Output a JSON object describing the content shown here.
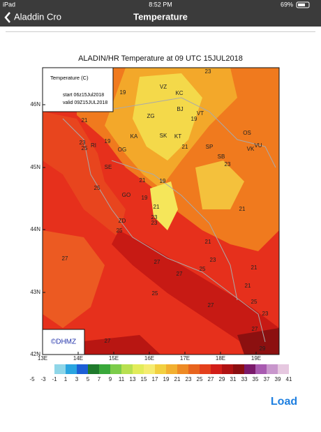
{
  "status_bar": {
    "device": "iPad",
    "time": "8:52 PM",
    "battery": "69%"
  },
  "nav_bar": {
    "back": "Aladdin Cro",
    "title": "Temperature"
  },
  "map": {
    "title": "ALADIN/HR Temperature at 09 UTC 15JUL2018",
    "legend": {
      "title": "Temperature (C)",
      "start": "start 06z15Jul2018",
      "valid": "valid 09Z15JUL2018"
    },
    "lat_labels": [
      "46N",
      "45N",
      "44N",
      "43N",
      "42N"
    ],
    "lon_labels": [
      "13E",
      "14E",
      "15E",
      "16E",
      "17E",
      "18E",
      "19E"
    ],
    "credit": "©DHMZ",
    "point_labels": [
      "23",
      "19",
      "VZ",
      "KC",
      "ZG",
      "BJ",
      "VT",
      "21",
      "19",
      "KA",
      "SK",
      "KT",
      "OS",
      "23",
      "25",
      "RI",
      "19",
      "OG",
      "21",
      "SP",
      "VK",
      "VU",
      "SB",
      "23",
      "SE",
      "21",
      "19",
      "25",
      "GO",
      "19",
      "21",
      "21",
      "23",
      "23",
      "ZD",
      "25",
      "21",
      "27",
      "27",
      "23",
      "25",
      "27",
      "21",
      "25",
      "21",
      "27",
      "25",
      "23",
      "27",
      "27",
      "29"
    ]
  },
  "colorbar": {
    "labels": [
      -5,
      -3,
      -1,
      1,
      3,
      5,
      7,
      9,
      11,
      13,
      15,
      17,
      19,
      21,
      23,
      25,
      27,
      29,
      31,
      33,
      35,
      37,
      39,
      41
    ]
  },
  "button": {
    "label": "Load"
  }
}
